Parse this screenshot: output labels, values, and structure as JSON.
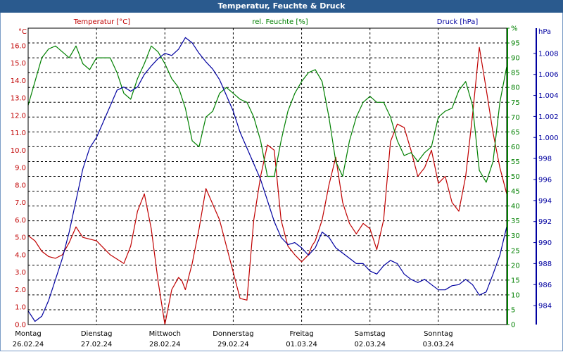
{
  "chart_data": {
    "type": "line",
    "title": "Temperatur, Feuchte & Druck",
    "axes": {
      "temperature": {
        "label": "Temperatur [°C]",
        "unit": "°C",
        "ylim": [
          0,
          17
        ],
        "ticks": [
          "0.0",
          "1.0",
          "2.0",
          "3.0",
          "4.0",
          "5.0",
          "6.0",
          "7.0",
          "8.0",
          "9.0",
          "10.0",
          "11.0",
          "12.0",
          "13.0",
          "14.0",
          "15.0",
          "16.0"
        ],
        "color": "#c00000"
      },
      "humidity": {
        "label": "rel. Feuchte [%]",
        "unit": "%",
        "ylim": [
          0,
          100
        ],
        "ticks": [
          "0",
          "5",
          "10",
          "15",
          "20",
          "25",
          "30",
          "35",
          "40",
          "45",
          "50",
          "55",
          "60",
          "65",
          "70",
          "75",
          "80",
          "85",
          "90",
          "95",
          "%"
        ],
        "color": "#008000"
      },
      "pressure": {
        "label": "Druck [hPa]",
        "unit": "hPa",
        "ylim": [
          982.2,
          1010.4
        ],
        "ticks": [
          "984",
          "986",
          "988",
          "990",
          "992",
          "994",
          "996",
          "998",
          "1.000",
          "1.002",
          "1.004",
          "1.006",
          "1.008"
        ],
        "tick_values": [
          984,
          986,
          988,
          990,
          992,
          994,
          996,
          998,
          1000,
          1002,
          1004,
          1006,
          1008
        ],
        "color": "#0000a0"
      }
    },
    "x_days": [
      {
        "day": "Montag",
        "date": "26.02.24"
      },
      {
        "day": "Dienstag",
        "date": "27.02.24"
      },
      {
        "day": "Mittwoch",
        "date": "28.02.24"
      },
      {
        "day": "Donnerstag",
        "date": "29.02.24"
      },
      {
        "day": "Freitag",
        "date": "01.03.24"
      },
      {
        "day": "Samstag",
        "date": "02.03.24"
      },
      {
        "day": "Sonntag",
        "date": "03.03.24"
      }
    ],
    "x_range_days": [
      0,
      7
    ],
    "grid": true,
    "series": [
      {
        "name": "Temperatur [°C]",
        "axis": "temperature",
        "color": "#c00000",
        "t": [
          0,
          0.1,
          0.2,
          0.3,
          0.4,
          0.5,
          0.6,
          0.7,
          0.8,
          1.0,
          1.2,
          1.4,
          1.5,
          1.6,
          1.7,
          1.8,
          1.9,
          2.0,
          2.1,
          2.2,
          2.25,
          2.3,
          2.4,
          2.5,
          2.6,
          2.8,
          2.9,
          3.0,
          3.1,
          3.2,
          3.3,
          3.4,
          3.5,
          3.6,
          3.7,
          3.8,
          3.9,
          4.0,
          4.1,
          4.15,
          4.2,
          4.3,
          4.4,
          4.5,
          4.6,
          4.7,
          4.8,
          4.9,
          5.0,
          5.1,
          5.2,
          5.3,
          5.4,
          5.5,
          5.6,
          5.7,
          5.8,
          5.9,
          6.0,
          6.1,
          6.2,
          6.3,
          6.4,
          6.5,
          6.6,
          6.7,
          6.8,
          6.9,
          7.0
        ],
        "values": [
          5.1,
          4.8,
          4.2,
          3.9,
          3.8,
          4.0,
          4.7,
          5.6,
          5.0,
          4.8,
          4.0,
          3.5,
          4.5,
          6.5,
          7.5,
          5.5,
          2.5,
          0.0,
          2.0,
          2.7,
          2.5,
          2.0,
          3.5,
          5.5,
          7.8,
          6.0,
          4.5,
          3.0,
          1.5,
          1.4,
          6.0,
          8.5,
          10.3,
          10.0,
          6.0,
          4.5,
          4.0,
          3.6,
          4.0,
          4.5,
          4.8,
          6.0,
          8.0,
          9.6,
          7.0,
          5.8,
          5.2,
          5.8,
          5.5,
          4.3,
          6.0,
          10.5,
          11.5,
          11.3,
          10.0,
          8.5,
          9.0,
          10.0,
          8.1,
          8.5,
          7.0,
          6.5,
          8.5,
          12.0,
          15.9,
          13.5,
          11.0,
          9.0,
          7.5
        ]
      },
      {
        "name": "rel. Feuchte [%]",
        "axis": "humidity",
        "color": "#008000",
        "t": [
          0,
          0.1,
          0.2,
          0.3,
          0.4,
          0.5,
          0.6,
          0.7,
          0.8,
          0.9,
          1.0,
          1.1,
          1.2,
          1.3,
          1.4,
          1.5,
          1.6,
          1.7,
          1.8,
          1.9,
          2.0,
          2.1,
          2.2,
          2.3,
          2.4,
          2.5,
          2.6,
          2.7,
          2.8,
          2.9,
          3.0,
          3.1,
          3.2,
          3.3,
          3.4,
          3.5,
          3.6,
          3.7,
          3.8,
          3.9,
          4.0,
          4.1,
          4.2,
          4.3,
          4.4,
          4.5,
          4.6,
          4.7,
          4.8,
          4.9,
          5.0,
          5.1,
          5.2,
          5.3,
          5.4,
          5.5,
          5.6,
          5.7,
          5.8,
          5.9,
          6.0,
          6.1,
          6.2,
          6.3,
          6.4,
          6.5,
          6.6,
          6.7,
          6.8,
          6.9,
          7.0
        ],
        "values": [
          74,
          82,
          90,
          93,
          94,
          92,
          90,
          94,
          88,
          86,
          90,
          90,
          90,
          85,
          78,
          76,
          83,
          88,
          94,
          92,
          88,
          83,
          80,
          73,
          62,
          60,
          70,
          72,
          78,
          80,
          78,
          76,
          75,
          70,
          62,
          50,
          50,
          62,
          72,
          78,
          82,
          85,
          86,
          82,
          70,
          55,
          50,
          62,
          70,
          75,
          77,
          75,
          75,
          70,
          62,
          57,
          58,
          55,
          58,
          60,
          70,
          72,
          73,
          79,
          82,
          74,
          52,
          48,
          55,
          75,
          87
        ]
      },
      {
        "name": "Druck [hPa]",
        "axis": "pressure",
        "color": "#0000a0",
        "t": [
          0,
          0.1,
          0.2,
          0.3,
          0.4,
          0.5,
          0.6,
          0.7,
          0.8,
          0.9,
          1.0,
          1.1,
          1.2,
          1.3,
          1.4,
          1.5,
          1.6,
          1.7,
          1.8,
          1.9,
          2.0,
          2.1,
          2.2,
          2.3,
          2.4,
          2.5,
          2.6,
          2.7,
          2.8,
          2.9,
          3.0,
          3.1,
          3.2,
          3.3,
          3.4,
          3.5,
          3.6,
          3.7,
          3.8,
          3.9,
          4.0,
          4.1,
          4.2,
          4.3,
          4.4,
          4.5,
          4.6,
          4.7,
          4.8,
          4.9,
          5.0,
          5.1,
          5.2,
          5.3,
          5.4,
          5.5,
          5.6,
          5.7,
          5.8,
          5.9,
          6.0,
          6.1,
          6.2,
          6.3,
          6.4,
          6.5,
          6.6,
          6.7,
          6.8,
          6.9,
          7.0
        ],
        "values": [
          983.5,
          982.5,
          983.0,
          984.5,
          986.5,
          988.5,
          991.0,
          994.0,
          997.0,
          999.0,
          1000.0,
          1001.5,
          1003.0,
          1004.5,
          1004.8,
          1004.4,
          1004.8,
          1006.0,
          1006.8,
          1007.5,
          1008.0,
          1007.8,
          1008.4,
          1009.5,
          1009.0,
          1008.0,
          1007.2,
          1006.5,
          1005.5,
          1004.0,
          1002.5,
          1000.5,
          999.0,
          997.5,
          996.0,
          994.0,
          992.0,
          990.5,
          989.8,
          990.0,
          989.5,
          988.8,
          989.5,
          991.0,
          990.5,
          989.5,
          989.0,
          988.5,
          988.0,
          988.0,
          987.3,
          987.0,
          987.8,
          988.3,
          988.0,
          987.0,
          986.5,
          986.2,
          986.5,
          986.0,
          985.5,
          985.5,
          985.9,
          986.0,
          986.5,
          986.0,
          985.0,
          985.3,
          987.0,
          988.8,
          991.5
        ]
      }
    ]
  }
}
